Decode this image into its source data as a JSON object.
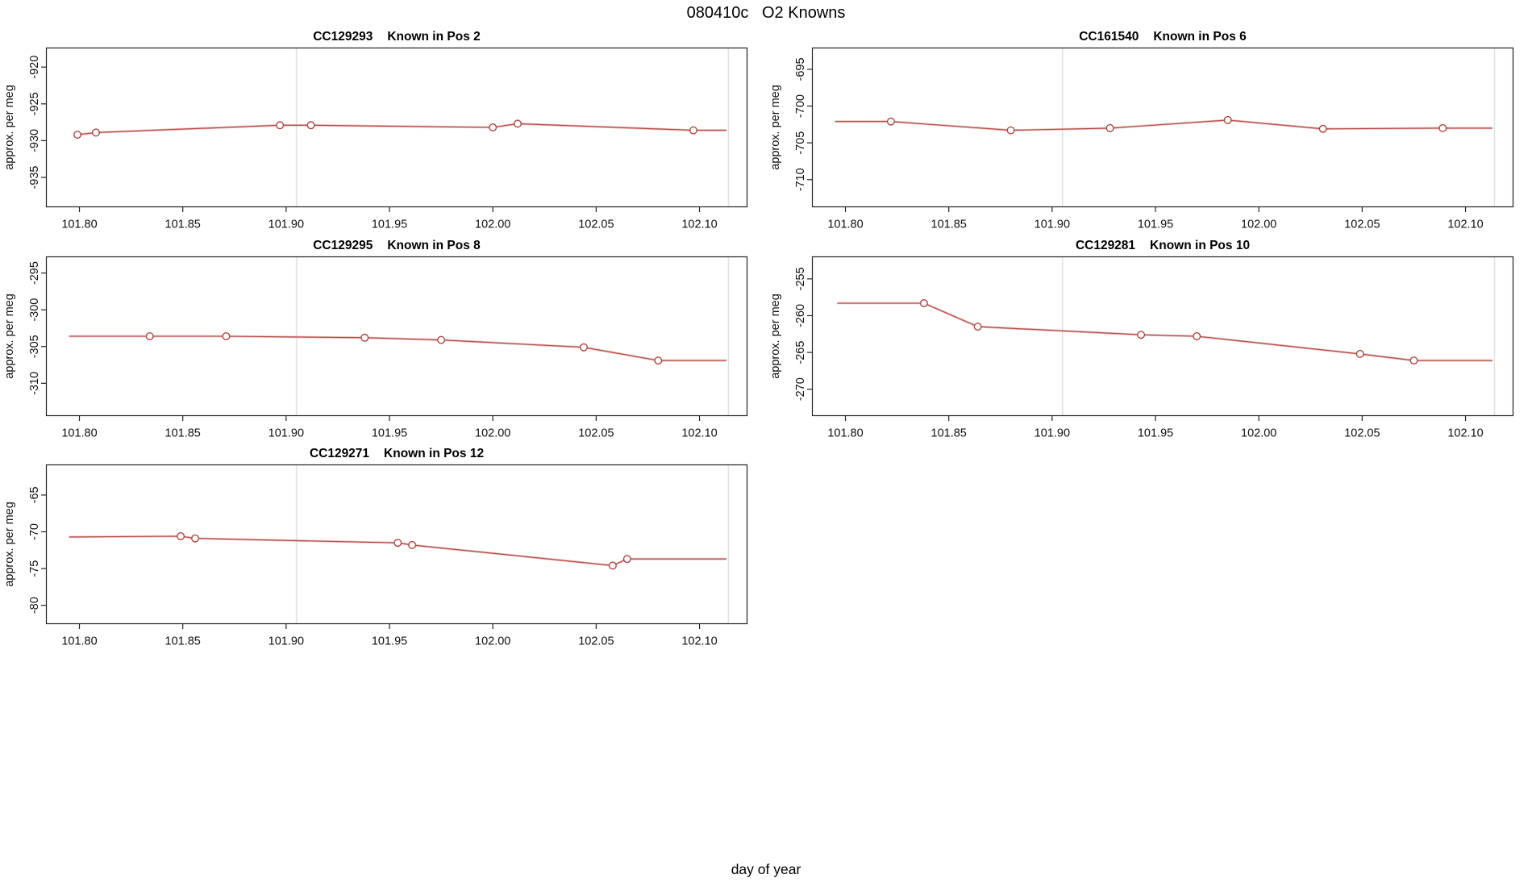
{
  "title": "080410c   O2 Knowns",
  "chart_data": {
    "type": "line",
    "title": "080410c   O2 Knowns",
    "xlabel": "day of year",
    "ylabel": "approx. per meg",
    "x_range": [
      101.784,
      102.123
    ],
    "x_ticks": [
      101.8,
      101.85,
      101.9,
      101.95,
      102.0,
      102.05,
      102.1
    ],
    "x_tick_labels": [
      "101.80",
      "101.85",
      "101.90",
      "101.95",
      "102.00",
      "102.05",
      "102.10"
    ],
    "vlines": [
      101.905,
      102.114
    ],
    "legend": "none",
    "grid": "off",
    "line_color": "#b0433f",
    "line_halo_color": "#e2a9a6",
    "grid_color": "#e3e3e3",
    "panels": [
      {
        "sample_id": "CC129293",
        "position_label": "Known in Pos 2",
        "slot": [
          0,
          0
        ],
        "y_ticks": [
          -920,
          -925,
          -930,
          -935
        ],
        "y_range": [
          -939.0,
          -917.4
        ],
        "line": [
          [
            101.799,
            -929.2
          ],
          [
            101.808,
            -928.9
          ],
          [
            101.897,
            -927.9
          ],
          [
            101.912,
            -927.9
          ],
          [
            102.0,
            -928.2
          ],
          [
            102.012,
            -927.7
          ],
          [
            102.097,
            -928.6
          ],
          [
            102.113,
            -928.6
          ]
        ],
        "markers": [
          [
            101.799,
            -929.2
          ],
          [
            101.808,
            -928.9
          ],
          [
            101.897,
            -927.9
          ],
          [
            101.912,
            -927.9
          ],
          [
            102.0,
            -928.2
          ],
          [
            102.012,
            -927.7
          ],
          [
            102.097,
            -928.6
          ]
        ]
      },
      {
        "sample_id": "CC161540",
        "position_label": "Known in Pos 6",
        "slot": [
          0,
          1
        ],
        "y_ticks": [
          -695,
          -700,
          -705,
          -710
        ],
        "y_range": [
          -713.7,
          -692.1
        ],
        "line": [
          [
            101.795,
            -702.1
          ],
          [
            101.822,
            -702.1
          ],
          [
            101.88,
            -703.3
          ],
          [
            101.928,
            -703.0
          ],
          [
            101.985,
            -701.9
          ],
          [
            102.031,
            -703.1
          ],
          [
            102.089,
            -703.0
          ],
          [
            102.113,
            -703.0
          ]
        ],
        "markers": [
          [
            101.822,
            -702.1
          ],
          [
            101.88,
            -703.3
          ],
          [
            101.928,
            -703.0
          ],
          [
            101.985,
            -701.9
          ],
          [
            102.031,
            -703.1
          ],
          [
            102.089,
            -703.0
          ]
        ]
      },
      {
        "sample_id": "CC129295",
        "position_label": "Known in Pos 8",
        "slot": [
          1,
          0
        ],
        "y_ticks": [
          -295,
          -300,
          -305,
          -310
        ],
        "y_range": [
          -314.4,
          -292.8
        ],
        "line": [
          [
            101.795,
            -303.6
          ],
          [
            101.834,
            -303.6
          ],
          [
            101.871,
            -303.6
          ],
          [
            101.938,
            -303.8
          ],
          [
            101.975,
            -304.1
          ],
          [
            102.044,
            -305.1
          ],
          [
            102.08,
            -306.9
          ],
          [
            102.113,
            -306.9
          ]
        ],
        "markers": [
          [
            101.834,
            -303.6
          ],
          [
            101.871,
            -303.6
          ],
          [
            101.938,
            -303.8
          ],
          [
            101.975,
            -304.1
          ],
          [
            102.044,
            -305.1
          ],
          [
            102.08,
            -306.9
          ]
        ]
      },
      {
        "sample_id": "CC129281",
        "position_label": "Known in Pos 10",
        "slot": [
          1,
          1
        ],
        "y_ticks": [
          -255,
          -260,
          -265,
          -270
        ],
        "y_range": [
          -273.6,
          -252.0
        ],
        "line": [
          [
            101.796,
            -258.3
          ],
          [
            101.838,
            -258.3
          ],
          [
            101.864,
            -261.5
          ],
          [
            101.943,
            -262.6
          ],
          [
            101.97,
            -262.8
          ],
          [
            102.049,
            -265.2
          ],
          [
            102.075,
            -266.1
          ],
          [
            102.113,
            -266.1
          ]
        ],
        "markers": [
          [
            101.838,
            -258.3
          ],
          [
            101.864,
            -261.5
          ],
          [
            101.943,
            -262.6
          ],
          [
            101.97,
            -262.8
          ],
          [
            102.049,
            -265.2
          ],
          [
            102.075,
            -266.1
          ]
        ]
      },
      {
        "sample_id": "CC129271",
        "position_label": "Known in Pos 12",
        "slot": [
          2,
          0
        ],
        "y_ticks": [
          -65,
          -70,
          -75,
          -80
        ],
        "y_range": [
          -82.5,
          -60.9
        ],
        "line": [
          [
            101.795,
            -70.7
          ],
          [
            101.849,
            -70.6
          ],
          [
            101.856,
            -70.9
          ],
          [
            101.954,
            -71.5
          ],
          [
            101.961,
            -71.8
          ],
          [
            102.058,
            -74.6
          ],
          [
            102.065,
            -73.7
          ],
          [
            102.113,
            -73.7
          ]
        ],
        "markers": [
          [
            101.849,
            -70.6
          ],
          [
            101.856,
            -70.9
          ],
          [
            101.954,
            -71.5
          ],
          [
            101.961,
            -71.8
          ],
          [
            102.058,
            -74.6
          ],
          [
            102.065,
            -73.7
          ]
        ]
      }
    ]
  }
}
